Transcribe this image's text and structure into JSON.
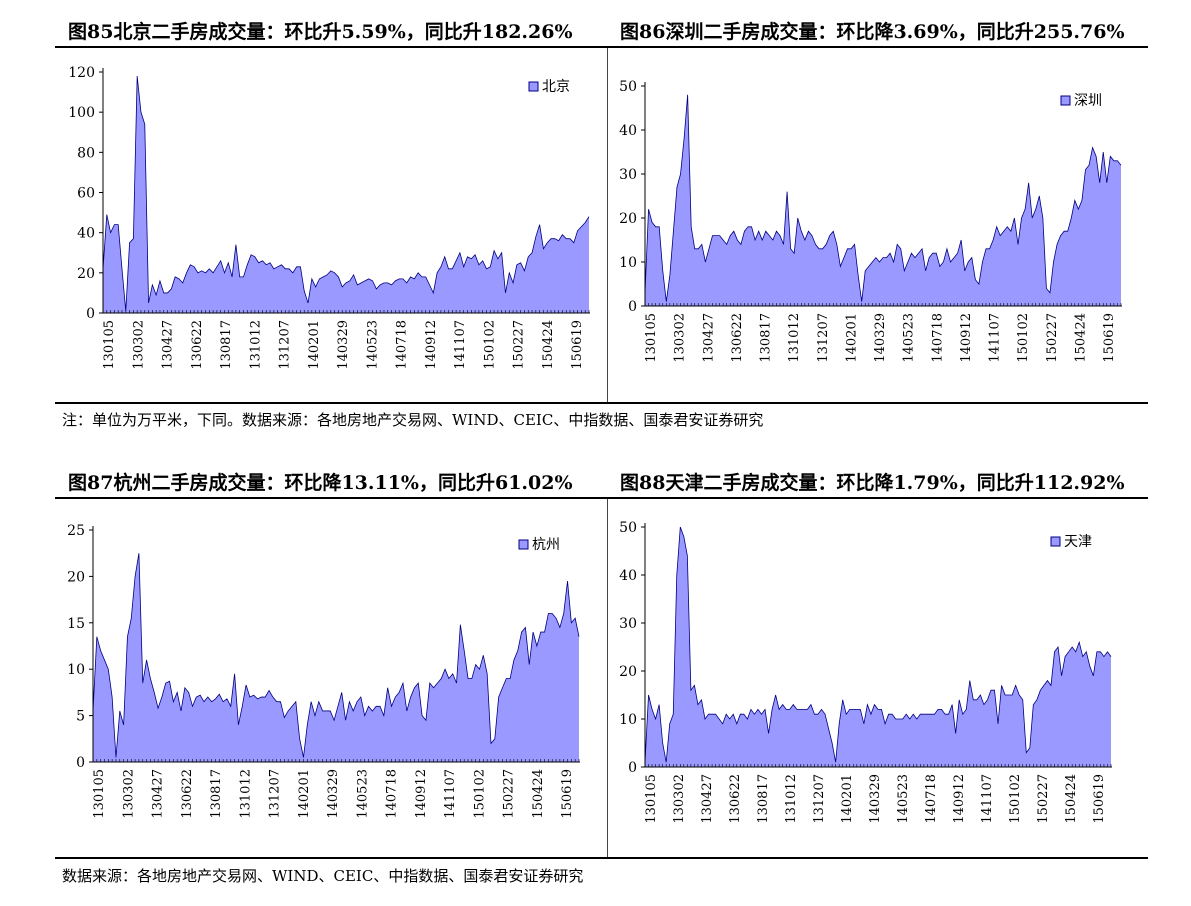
{
  "titles": [
    "图85北京二手房成交量：环比升5.59%，同比升182.26%",
    "图86深圳二手房成交量：环比降3.69%，同比升255.76%",
    "图87杭州二手房成交量：环比降13.11%，同比升61.02%",
    "图88天津二手房成交量：环比降1.79%，同比升112.92%"
  ],
  "note_top": "注：单位为万平米，下同。数据来源：各地房地产交易网、WIND、CEIC、中指数据、国泰君安证券研究",
  "note_bottom": "数据来源：各地房地产交易网、WIND、CEIC、中指数据、国泰君安证券研究",
  "colors": {
    "fill": "#9999ff",
    "stroke": "#000080"
  },
  "chart_data": [
    {
      "type": "area",
      "series": [
        {
          "name": "北京",
          "values": [
            22,
            49,
            40,
            44,
            44,
            22,
            1,
            35,
            37,
            118,
            100,
            94,
            5,
            14,
            9,
            16,
            10,
            10,
            12,
            18,
            17,
            15,
            20,
            24,
            23,
            20,
            21,
            20,
            22,
            20,
            23,
            26,
            20,
            25,
            18,
            34,
            18,
            18,
            24,
            29,
            28,
            25,
            26,
            24,
            25,
            22,
            23,
            24,
            22,
            22,
            20,
            23,
            23,
            11,
            5,
            17,
            13,
            17,
            18,
            19,
            21,
            20,
            18,
            13,
            15,
            16,
            19,
            14,
            15,
            16,
            17,
            16,
            12,
            14,
            15,
            15,
            14,
            16,
            17,
            17,
            15,
            18,
            17,
            20,
            18,
            18,
            14,
            10,
            20,
            23,
            28,
            22,
            22,
            26,
            30,
            23,
            28,
            27,
            29,
            24,
            26,
            22,
            23,
            31,
            27,
            30,
            10,
            20,
            15,
            24,
            25,
            21,
            28,
            30,
            38,
            44,
            32,
            35,
            37,
            37,
            36,
            39,
            37,
            37,
            35,
            41,
            43,
            45,
            48
          ]
        }
      ],
      "x_labels": [
        "130105",
        "130302",
        "130427",
        "130622",
        "130817",
        "131012",
        "131207",
        "140201",
        "140329",
        "140523",
        "140718",
        "140912",
        "141107",
        "150102",
        "150227",
        "150424",
        "150619"
      ],
      "ylim": [
        0,
        120
      ],
      "yticks": [
        0,
        20,
        40,
        60,
        80,
        100,
        120
      ],
      "legend_position": "top-right"
    },
    {
      "type": "area",
      "series": [
        {
          "name": "深圳",
          "values": [
            3,
            22,
            19,
            18,
            18,
            8,
            1,
            7,
            17,
            27,
            30,
            38,
            48,
            18,
            13,
            13,
            14,
            10,
            13,
            16,
            16,
            16,
            15,
            14,
            16,
            17,
            15,
            14,
            17,
            18,
            18,
            15,
            17,
            15,
            17,
            16,
            15,
            17,
            16,
            14,
            26,
            13,
            12,
            20,
            17,
            15,
            17,
            16,
            14,
            13,
            13,
            14,
            16,
            17,
            14,
            9,
            11,
            13,
            13,
            14,
            7,
            1,
            8,
            9,
            10,
            11,
            10,
            11,
            11,
            12,
            10,
            14,
            13,
            8,
            10,
            12,
            11,
            12,
            13,
            8,
            11,
            12,
            12,
            9,
            10,
            13,
            10,
            11,
            12,
            15,
            8,
            10,
            11,
            6,
            5,
            10,
            13,
            13,
            15,
            18,
            16,
            17,
            18,
            17,
            20,
            14,
            20,
            22,
            28,
            20,
            22,
            25,
            20,
            4,
            3,
            10,
            14,
            16,
            17,
            17,
            20,
            24,
            22,
            24,
            31,
            32,
            36,
            34,
            28,
            35,
            28,
            34,
            33,
            33,
            32
          ]
        }
      ],
      "x_labels": [
        "130105",
        "130302",
        "130427",
        "130622",
        "130817",
        "131012",
        "131207",
        "140201",
        "140329",
        "140523",
        "140718",
        "140912",
        "141107",
        "150102",
        "150227",
        "150424",
        "150619"
      ],
      "ylim": [
        0,
        50
      ],
      "yticks": [
        0,
        10,
        20,
        30,
        40,
        50
      ],
      "legend_position": "top-right"
    },
    {
      "type": "area",
      "series": [
        {
          "name": "杭州",
          "values": [
            5.5,
            13.5,
            12,
            11,
            10,
            7,
            0.5,
            5.5,
            4,
            13.5,
            15.5,
            20,
            22.5,
            8.5,
            11,
            9,
            7.5,
            5.8,
            7,
            8.5,
            8.7,
            6.5,
            7.5,
            5.5,
            8,
            7.5,
            6,
            7,
            7.2,
            6.5,
            7,
            6.5,
            6.8,
            7.3,
            6.5,
            6.8,
            6,
            9.5,
            4,
            6,
            8.3,
            7,
            7.2,
            6.8,
            7,
            7,
            7.7,
            7,
            6.5,
            6.5,
            4.8,
            5.5,
            6,
            6.5,
            2.5,
            0.5,
            4,
            6.5,
            5,
            6.5,
            5.5,
            5.5,
            5.5,
            4.5,
            6,
            7.5,
            4.5,
            6.5,
            5.5,
            6.5,
            7,
            5,
            6,
            5.5,
            6,
            6,
            5,
            8,
            6,
            7,
            7.5,
            8.5,
            5.5,
            7,
            8,
            8.5,
            5,
            4.5,
            8.5,
            8,
            8.5,
            9,
            10,
            9,
            9.5,
            8.5,
            14.8,
            12,
            9,
            9,
            10.5,
            10,
            11.5,
            9.5,
            2,
            2.5,
            7,
            8,
            9,
            9,
            11,
            12,
            14,
            14.5,
            10.5,
            14,
            12.5,
            14,
            14,
            16,
            16,
            15.5,
            14.5,
            16,
            19.5,
            15,
            15.5,
            13.5
          ]
        }
      ],
      "x_labels": [
        "130105",
        "130302",
        "130427",
        "130622",
        "130817",
        "131012",
        "131207",
        "140201",
        "140329",
        "140523",
        "140718",
        "140912",
        "141107",
        "150102",
        "150227",
        "150424",
        "150619"
      ],
      "ylim": [
        0,
        25
      ],
      "yticks": [
        0,
        5,
        10,
        15,
        20,
        25
      ],
      "legend_position": "top-right"
    },
    {
      "type": "area",
      "series": [
        {
          "name": "天津",
          "values": [
            1,
            15,
            12,
            10,
            13,
            5,
            1,
            9,
            11,
            40,
            50,
            48,
            44,
            16,
            17,
            13,
            14,
            10,
            11,
            11,
            11,
            10,
            9,
            11,
            10,
            11,
            9,
            11,
            11,
            10,
            12,
            11,
            12,
            11,
            12,
            7,
            12,
            15,
            12,
            13,
            12,
            12,
            13,
            12,
            12,
            12,
            12,
            13,
            11,
            11,
            12,
            11,
            8,
            5,
            1,
            9,
            14,
            11,
            12,
            12,
            12,
            12,
            9,
            13,
            11,
            13,
            12,
            12,
            9,
            11,
            11,
            10,
            10,
            10,
            11,
            10,
            11,
            10,
            11,
            11,
            11,
            11,
            11,
            12,
            12,
            11,
            11,
            13,
            7,
            14,
            11,
            12,
            18,
            14,
            14,
            15,
            13,
            14,
            16,
            16,
            9,
            17,
            15,
            15,
            15,
            17,
            15,
            14,
            3,
            4,
            13,
            14,
            16,
            17,
            18,
            17,
            24,
            25,
            19,
            23,
            24,
            25,
            24,
            26,
            23,
            24,
            21,
            19,
            24,
            24,
            23,
            24,
            23
          ]
        }
      ],
      "x_labels": [
        "130105",
        "130302",
        "130427",
        "130622",
        "130817",
        "131012",
        "131207",
        "140201",
        "140329",
        "140523",
        "140718",
        "140912",
        "141107",
        "150102",
        "150227",
        "150424",
        "150619"
      ],
      "ylim": [
        0,
        50
      ],
      "yticks": [
        0,
        10,
        20,
        30,
        40,
        50
      ],
      "legend_position": "top-right"
    }
  ]
}
